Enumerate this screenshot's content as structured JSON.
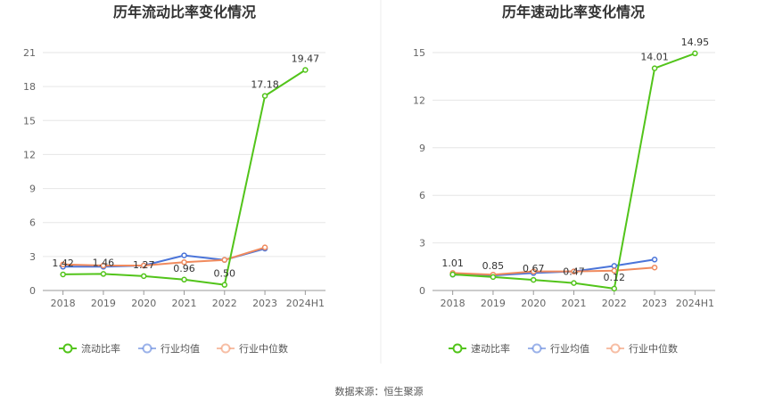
{
  "source": "数据来源：恒生聚源",
  "chart_data": [
    {
      "type": "line",
      "title": "历年流动比率变化情况",
      "categories": [
        "2018",
        "2019",
        "2020",
        "2021",
        "2022",
        "2023",
        "2024H1"
      ],
      "yticks": [
        0,
        3,
        6,
        9,
        12,
        15,
        18,
        21
      ],
      "ylim": [
        0,
        21
      ],
      "grid": true,
      "legend_position": "bottom",
      "series": [
        {
          "name": "流动比率",
          "color": "#52c41a",
          "values": [
            1.42,
            1.46,
            1.27,
            0.96,
            0.5,
            17.18,
            19.47
          ],
          "labels": [
            "1.42",
            "1.46",
            "1.27",
            "0.96",
            "0.50",
            "17.18",
            "19.47"
          ]
        },
        {
          "name": "行业均值",
          "color": "#4a74d9",
          "values": [
            2.1,
            2.1,
            2.2,
            3.1,
            2.7,
            3.7,
            null
          ]
        },
        {
          "name": "行业中位数",
          "color": "#f08a5d",
          "values": [
            2.3,
            2.2,
            2.2,
            2.5,
            2.7,
            3.8,
            null
          ]
        }
      ]
    },
    {
      "type": "line",
      "title": "历年速动比率变化情况",
      "categories": [
        "2018",
        "2019",
        "2020",
        "2021",
        "2022",
        "2023",
        "2024H1"
      ],
      "yticks": [
        0,
        3,
        6,
        9,
        12,
        15
      ],
      "ylim": [
        0,
        15
      ],
      "grid": true,
      "legend_position": "bottom",
      "series": [
        {
          "name": "速动比率",
          "color": "#52c41a",
          "values": [
            1.01,
            0.85,
            0.67,
            0.47,
            0.12,
            14.01,
            14.95
          ],
          "labels": [
            "1.01",
            "0.85",
            "0.67",
            "0.47",
            "0.12",
            "14.01",
            "14.95"
          ]
        },
        {
          "name": "行业均值",
          "color": "#4a74d9",
          "values": [
            1.0,
            0.95,
            1.1,
            1.2,
            1.55,
            1.95,
            null
          ]
        },
        {
          "name": "行业中位数",
          "color": "#f08a5d",
          "values": [
            1.1,
            1.0,
            1.2,
            1.2,
            1.25,
            1.45,
            null
          ]
        }
      ]
    }
  ]
}
